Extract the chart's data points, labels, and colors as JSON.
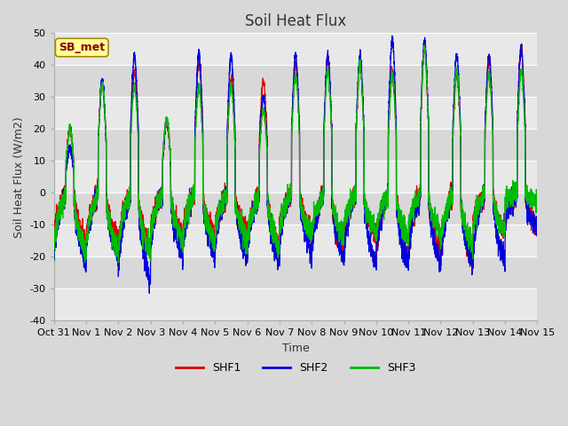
{
  "title": "Soil Heat Flux",
  "xlabel": "Time",
  "ylabel": "Soil Heat Flux (W/m2)",
  "ylim": [
    -40,
    50
  ],
  "xlim": [
    0,
    15
  ],
  "xtick_labels": [
    "Oct 31",
    "Nov 1",
    "Nov 2",
    "Nov 3",
    "Nov 4",
    "Nov 5",
    "Nov 6",
    "Nov 7",
    "Nov 8",
    "Nov 9",
    "Nov 10",
    "Nov 11",
    "Nov 12",
    "Nov 13",
    "Nov 14",
    "Nov 15"
  ],
  "ytick_labels": [
    "-40",
    "-30",
    "-20",
    "-10",
    "0",
    "10",
    "20",
    "30",
    "40",
    "50"
  ],
  "ytick_values": [
    -40,
    -30,
    -20,
    -10,
    0,
    10,
    20,
    30,
    40,
    50
  ],
  "line_colors": [
    "#dd0000",
    "#0000dd",
    "#00bb00"
  ],
  "line_labels": [
    "SHF1",
    "SHF2",
    "SHF3"
  ],
  "legend_label": "SB_met",
  "legend_text_color": "#8b0000",
  "legend_box_color": "#ffff99",
  "legend_box_edge": "#aa8800",
  "fig_bg_color": "#d8d8d8",
  "plot_bg_light": "#e8e8e8",
  "plot_bg_dark": "#d8d8d8",
  "grid_color": "#ffffff",
  "title_fontsize": 12,
  "axis_fontsize": 9,
  "tick_fontsize": 8,
  "n_days": 15,
  "samples_per_day": 288,
  "day_peak_hours": [
    9,
    15
  ],
  "night_level": -15,
  "shf1_peaks": [
    20,
    35,
    38,
    22,
    41,
    35,
    35,
    41,
    42,
    40,
    38,
    45,
    37,
    42,
    45
  ],
  "shf2_peaks": [
    14,
    35,
    43,
    23,
    43,
    43,
    30,
    43,
    43,
    43,
    48,
    48,
    43,
    43,
    45
  ],
  "shf3_peaks": [
    20,
    34,
    33,
    23,
    33,
    33,
    26,
    37,
    38,
    40,
    37,
    45,
    38,
    37,
    38
  ],
  "shf1_nights": [
    -15,
    -14,
    -18,
    -13,
    -14,
    -12,
    -17,
    -12,
    -18,
    -14,
    -20,
    -18,
    -22,
    -12,
    -11
  ],
  "shf2_nights": [
    -22,
    -20,
    -28,
    -20,
    -20,
    -20,
    -22,
    -18,
    -21,
    -22,
    -23,
    -23,
    -23,
    -22,
    -11
  ],
  "shf3_nights": [
    -19,
    -19,
    -19,
    -15,
    -16,
    -15,
    -18,
    -13,
    -14,
    -12,
    -14,
    -12,
    -17,
    -12,
    -3
  ]
}
